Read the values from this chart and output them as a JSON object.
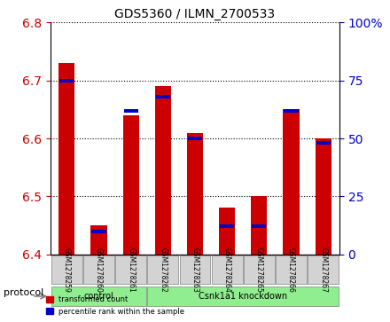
{
  "title": "GDS5360 / ILMN_2700533",
  "samples": [
    "GSM1278259",
    "GSM1278260",
    "GSM1278261",
    "GSM1278262",
    "GSM1278263",
    "GSM1278264",
    "GSM1278265",
    "GSM1278266",
    "GSM1278267"
  ],
  "red_values": [
    6.73,
    6.45,
    6.64,
    6.69,
    6.61,
    6.48,
    6.5,
    6.65,
    6.6
  ],
  "blue_values": [
    75,
    10,
    62,
    68,
    50,
    12,
    12,
    62,
    48
  ],
  "ylim_left": [
    6.4,
    6.8
  ],
  "ylim_right": [
    0,
    100
  ],
  "yticks_left": [
    6.4,
    6.5,
    6.6,
    6.7,
    6.8
  ],
  "yticks_right": [
    0,
    25,
    50,
    75,
    100
  ],
  "protocols": [
    {
      "label": "control",
      "start": 0,
      "end": 3
    },
    {
      "label": "Csnk1a1 knockdown",
      "start": 3,
      "end": 9
    }
  ],
  "protocol_label": "protocol",
  "bar_width": 0.5,
  "red_color": "#cc0000",
  "blue_color": "#0000cc",
  "left_tick_color": "#cc0000",
  "right_tick_color": "#0000cc",
  "background_color": "#ffffff",
  "xticklabels_bg": "#d3d3d3",
  "protocol_control_color": "#90ee90",
  "protocol_knockdown_color": "#90ee90",
  "grid_style": "dotted"
}
